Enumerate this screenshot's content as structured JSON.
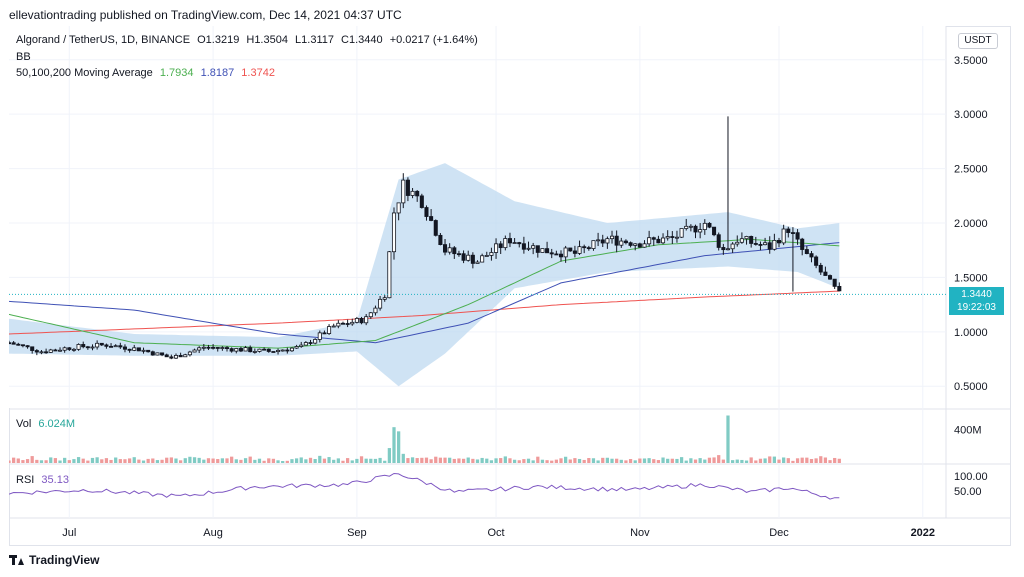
{
  "publisher_line": "ellevationtrading published on TradingView.com, Dec 14, 2021 04:37 UTC",
  "brand": "TradingView",
  "currency_button": "USDT",
  "legend": {
    "symbol": "Algorand / TetherUS, 1D, BINANCE",
    "open": "O1.3219",
    "high": "H1.3504",
    "low": "L1.3117",
    "close": "C1.3440",
    "change": "+0.0217 (+1.64%)",
    "bb": "BB",
    "ma_label": "50,100,200 Moving Average",
    "ma50": "1.7934",
    "ma100": "1.8187",
    "ma200": "1.3742"
  },
  "volume": {
    "label": "Vol",
    "value": "6.024M",
    "axis_label": "400M"
  },
  "rsi": {
    "label": "RSI",
    "value": "35.13",
    "axis_labels": [
      "100.00",
      "50.00"
    ]
  },
  "price_tag": {
    "price": "1.3440",
    "countdown": "19:22:03"
  },
  "colors": {
    "up": "#26a69a",
    "down": "#131722",
    "ma50": "#4caf50",
    "ma100": "#3f51b5",
    "ma200": "#ef5350",
    "bb_fill": "#bbd7f0",
    "vol_up": "#80cbc4",
    "vol_down": "#ef9a9a",
    "rsi": "#7e57c2",
    "accent": "#21b3c2"
  },
  "chart_data": {
    "type": "candlestick",
    "title": "Algorand / TetherUS, 1D, BINANCE",
    "y_ticks": [
      "0.5000",
      "1.0000",
      "1.5000",
      "2.0000",
      "2.5000",
      "3.0000",
      "3.5000"
    ],
    "ylim": [
      0.3,
      3.7
    ],
    "x_ticks": [
      "Jul",
      "Aug",
      "Sep",
      "Oct",
      "Nov",
      "Dec",
      "2022"
    ],
    "x_tick_dates": [
      "2021-07-01",
      "2021-08-01",
      "2021-09-01",
      "2021-10-01",
      "2021-11-01",
      "2021-12-01",
      "2022-01-01"
    ],
    "x_range": [
      "2021-06-18",
      "2022-01-06"
    ],
    "series_close": [
      {
        "date": "2021-06-18",
        "close": 0.9
      },
      {
        "date": "2021-06-25",
        "close": 0.82
      },
      {
        "date": "2021-07-02",
        "close": 0.86
      },
      {
        "date": "2021-07-09",
        "close": 0.88
      },
      {
        "date": "2021-07-16",
        "close": 0.84
      },
      {
        "date": "2021-07-23",
        "close": 0.76
      },
      {
        "date": "2021-07-30",
        "close": 0.86
      },
      {
        "date": "2021-08-06",
        "close": 0.84
      },
      {
        "date": "2021-08-13",
        "close": 0.82
      },
      {
        "date": "2021-08-20",
        "close": 0.86
      },
      {
        "date": "2021-08-27",
        "close": 1.05
      },
      {
        "date": "2021-09-03",
        "close": 1.12
      },
      {
        "date": "2021-09-07",
        "close": 1.35
      },
      {
        "date": "2021-09-09",
        "close": 2.1
      },
      {
        "date": "2021-09-11",
        "close": 2.35
      },
      {
        "date": "2021-09-15",
        "close": 2.2
      },
      {
        "date": "2021-09-20",
        "close": 1.75
      },
      {
        "date": "2021-09-27",
        "close": 1.65
      },
      {
        "date": "2021-10-04",
        "close": 1.85
      },
      {
        "date": "2021-10-11",
        "close": 1.75
      },
      {
        "date": "2021-10-18",
        "close": 1.72
      },
      {
        "date": "2021-10-25",
        "close": 1.85
      },
      {
        "date": "2021-11-01",
        "close": 1.82
      },
      {
        "date": "2021-11-08",
        "close": 1.86
      },
      {
        "date": "2021-11-15",
        "close": 2.0
      },
      {
        "date": "2021-11-19",
        "close": 1.75
      },
      {
        "date": "2021-11-22",
        "close": 1.85
      },
      {
        "date": "2021-11-29",
        "close": 1.78
      },
      {
        "date": "2021-12-03",
        "close": 1.95
      },
      {
        "date": "2021-12-06",
        "close": 1.75
      },
      {
        "date": "2021-12-10",
        "close": 1.55
      },
      {
        "date": "2021-12-14",
        "close": 1.344
      }
    ],
    "ma50": [
      {
        "date": "2021-06-18",
        "v": 1.16
      },
      {
        "date": "2021-07-15",
        "v": 0.9
      },
      {
        "date": "2021-08-15",
        "v": 0.85
      },
      {
        "date": "2021-09-05",
        "v": 0.92
      },
      {
        "date": "2021-09-25",
        "v": 1.25
      },
      {
        "date": "2021-10-15",
        "v": 1.65
      },
      {
        "date": "2021-11-05",
        "v": 1.8
      },
      {
        "date": "2021-11-25",
        "v": 1.85
      },
      {
        "date": "2021-12-14",
        "v": 1.79
      }
    ],
    "ma100": [
      {
        "date": "2021-06-18",
        "v": 1.28
      },
      {
        "date": "2021-07-15",
        "v": 1.2
      },
      {
        "date": "2021-08-15",
        "v": 0.98
      },
      {
        "date": "2021-09-05",
        "v": 0.9
      },
      {
        "date": "2021-09-25",
        "v": 1.08
      },
      {
        "date": "2021-10-15",
        "v": 1.45
      },
      {
        "date": "2021-11-15",
        "v": 1.7
      },
      {
        "date": "2021-12-14",
        "v": 1.82
      }
    ],
    "ma200": [
      {
        "date": "2021-06-18",
        "v": 0.98
      },
      {
        "date": "2021-08-15",
        "v": 1.08
      },
      {
        "date": "2021-09-15",
        "v": 1.15
      },
      {
        "date": "2021-10-15",
        "v": 1.25
      },
      {
        "date": "2021-11-15",
        "v": 1.32
      },
      {
        "date": "2021-12-14",
        "v": 1.374
      }
    ],
    "bb_upper": [
      {
        "date": "2021-06-18",
        "v": 1.12
      },
      {
        "date": "2021-07-15",
        "v": 0.98
      },
      {
        "date": "2021-08-15",
        "v": 0.95
      },
      {
        "date": "2021-09-01",
        "v": 1.1
      },
      {
        "date": "2021-09-10",
        "v": 2.4
      },
      {
        "date": "2021-09-20",
        "v": 2.55
      },
      {
        "date": "2021-10-05",
        "v": 2.2
      },
      {
        "date": "2021-10-25",
        "v": 2.0
      },
      {
        "date": "2021-11-20",
        "v": 2.1
      },
      {
        "date": "2021-12-05",
        "v": 1.95
      },
      {
        "date": "2021-12-14",
        "v": 2.0
      }
    ],
    "bb_lower": [
      {
        "date": "2021-06-18",
        "v": 0.8
      },
      {
        "date": "2021-07-15",
        "v": 0.78
      },
      {
        "date": "2021-08-15",
        "v": 0.78
      },
      {
        "date": "2021-09-01",
        "v": 0.82
      },
      {
        "date": "2021-09-10",
        "v": 0.5
      },
      {
        "date": "2021-09-20",
        "v": 0.8
      },
      {
        "date": "2021-10-05",
        "v": 1.4
      },
      {
        "date": "2021-10-25",
        "v": 1.55
      },
      {
        "date": "2021-11-20",
        "v": 1.6
      },
      {
        "date": "2021-12-05",
        "v": 1.55
      },
      {
        "date": "2021-12-14",
        "v": 1.4
      }
    ],
    "wick_spike": {
      "date": "2021-11-20",
      "high": 2.98
    },
    "wick_low": {
      "date": "2021-12-04",
      "low": 1.37
    },
    "volume_spikes": [
      {
        "date": "2021-09-09",
        "v": 430
      },
      {
        "date": "2021-09-10",
        "v": 380
      },
      {
        "date": "2021-11-20",
        "v": 570
      }
    ],
    "volume_ylim": [
      0,
      600
    ],
    "rsi_ylim": [
      0,
      100
    ],
    "rsi_series": [
      {
        "date": "2021-06-18",
        "v": 46
      },
      {
        "date": "2021-07-05",
        "v": 52
      },
      {
        "date": "2021-07-25",
        "v": 40
      },
      {
        "date": "2021-08-10",
        "v": 58
      },
      {
        "date": "2021-08-30",
        "v": 62
      },
      {
        "date": "2021-09-10",
        "v": 82
      },
      {
        "date": "2021-09-22",
        "v": 48
      },
      {
        "date": "2021-10-10",
        "v": 58
      },
      {
        "date": "2021-10-30",
        "v": 52
      },
      {
        "date": "2021-11-15",
        "v": 62
      },
      {
        "date": "2021-11-25",
        "v": 48
      },
      {
        "date": "2021-12-03",
        "v": 56
      },
      {
        "date": "2021-12-14",
        "v": 35
      }
    ]
  }
}
